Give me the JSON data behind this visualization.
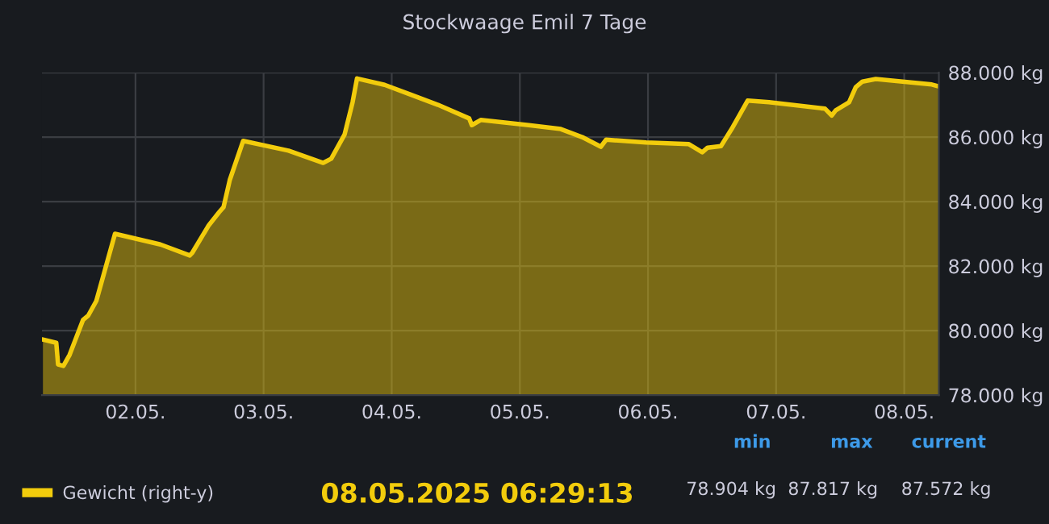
{
  "chart_data": {
    "type": "area",
    "title": "Stockwaage Emil 7 Tage",
    "x": [
      "2025-05-01T06:40",
      "2025-05-01T09:10",
      "2025-05-01T09:30",
      "2025-05-01T10:30",
      "2025-05-01T11:40",
      "2025-05-01T14:10",
      "2025-05-01T15:10",
      "2025-05-01T16:40",
      "2025-05-01T20:10",
      "2025-05-02T04:40",
      "2025-05-02T10:10",
      "2025-05-02T10:40",
      "2025-05-02T13:40",
      "2025-05-02T15:40",
      "2025-05-02T16:30",
      "2025-05-02T17:40",
      "2025-05-02T20:10",
      "2025-05-03T04:40",
      "2025-05-03T11:10",
      "2025-05-03T12:40",
      "2025-05-03T15:10",
      "2025-05-03T16:40",
      "2025-05-03T17:30",
      "2025-05-03T22:40",
      "2025-05-04T08:40",
      "2025-05-04T14:30",
      "2025-05-04T15:00",
      "2025-05-04T16:40",
      "2025-05-05T01:40",
      "2025-05-05T07:40",
      "2025-05-05T11:40",
      "2025-05-05T15:10",
      "2025-05-05T16:10",
      "2025-05-05T23:40",
      "2025-05-06T07:40",
      "2025-05-06T10:10",
      "2025-05-06T11:10",
      "2025-05-06T13:40",
      "2025-05-06T15:40",
      "2025-05-06T18:40",
      "2025-05-06T22:40",
      "2025-05-07T09:10",
      "2025-05-07T10:25",
      "2025-05-07T11:10",
      "2025-05-07T13:40",
      "2025-05-07T14:55",
      "2025-05-07T16:10",
      "2025-05-07T18:40",
      "2025-05-08T05:10",
      "2025-05-08T06:29"
    ],
    "series": [
      {
        "name": "Gewicht (right-y)",
        "color": "#f2cc0c",
        "values": [
          79.72,
          79.62,
          78.95,
          78.904,
          79.25,
          80.33,
          80.47,
          80.92,
          83.0,
          82.67,
          82.33,
          82.42,
          83.25,
          83.67,
          83.83,
          84.67,
          85.88,
          85.58,
          85.2,
          85.33,
          86.08,
          87.08,
          87.817,
          87.62,
          87.0,
          86.58,
          86.37,
          86.53,
          86.37,
          86.25,
          86.0,
          85.7,
          85.92,
          85.83,
          85.78,
          85.53,
          85.67,
          85.72,
          86.25,
          87.13,
          87.08,
          86.88,
          86.67,
          86.83,
          87.08,
          87.55,
          87.72,
          87.8,
          87.63,
          87.572
        ]
      }
    ],
    "xlim": [
      "2025-05-01T06:29",
      "2025-05-08T06:29"
    ],
    "xticks": [
      {
        "value": "2025-05-02T00:00",
        "label": "02.05."
      },
      {
        "value": "2025-05-03T00:00",
        "label": "03.05."
      },
      {
        "value": "2025-05-04T00:00",
        "label": "04.05."
      },
      {
        "value": "2025-05-05T00:00",
        "label": "05.05."
      },
      {
        "value": "2025-05-06T00:00",
        "label": "06.05."
      },
      {
        "value": "2025-05-07T00:00",
        "label": "07.05."
      },
      {
        "value": "2025-05-08T00:00",
        "label": "08.05."
      }
    ],
    "ylim": [
      78,
      88
    ],
    "yticks": [
      {
        "value": 78,
        "label": "78.000 kg"
      },
      {
        "value": 80,
        "label": "80.000 kg"
      },
      {
        "value": 82,
        "label": "82.000 kg"
      },
      {
        "value": 84,
        "label": "84.000 kg"
      },
      {
        "value": 86,
        "label": "86.000 kg"
      },
      {
        "value": 88,
        "label": "88.000 kg"
      }
    ],
    "grid": true,
    "legend": "bottom left",
    "annotations": [
      "08.05.2025 06:29:13",
      "min",
      "max",
      "current",
      "78.904 kg",
      "87.817 kg",
      "87.572 kg"
    ]
  }
}
